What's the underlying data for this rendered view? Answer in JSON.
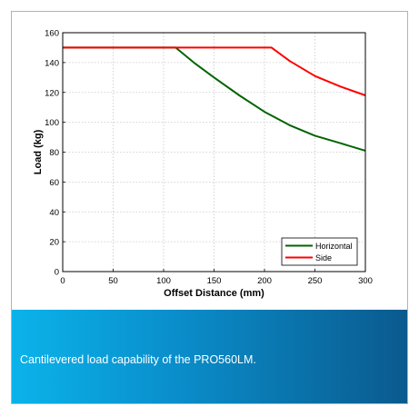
{
  "chart_data": {
    "type": "line",
    "xlabel": "Offset Distance (mm)",
    "ylabel": "Load (kg)",
    "xlim": [
      0,
      300
    ],
    "ylim": [
      0,
      160
    ],
    "xticks": [
      "0",
      "50",
      "100",
      "150",
      "200",
      "250",
      "300"
    ],
    "yticks": [
      "0",
      "20",
      "40",
      "60",
      "80",
      "100",
      "120",
      "140",
      "160"
    ],
    "grid": true,
    "legend": "bottom-right",
    "series": [
      {
        "name": "Horizontal",
        "color": "#006400",
        "x": [
          0,
          112,
          130,
          150,
          175,
          200,
          225,
          250,
          275,
          300
        ],
        "y": [
          150,
          150,
          140,
          130,
          118,
          107,
          98,
          91,
          86,
          81
        ]
      },
      {
        "name": "Side",
        "color": "#ff0000",
        "x": [
          0,
          207,
          225,
          250,
          275,
          300
        ],
        "y": [
          150,
          150,
          141,
          131,
          124,
          118
        ]
      }
    ]
  },
  "caption": "Cantilevered load capability of the PRO560LM."
}
